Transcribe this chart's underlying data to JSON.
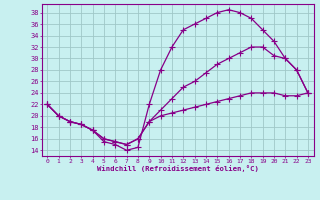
{
  "xlabel": "Windchill (Refroidissement éolien,°C)",
  "bg_color": "#c8f0f0",
  "grid_color": "#a0c8c8",
  "line_color": "#880088",
  "xlim": [
    -0.5,
    23.5
  ],
  "ylim": [
    13,
    39.5
  ],
  "xticks": [
    0,
    1,
    2,
    3,
    4,
    5,
    6,
    7,
    8,
    9,
    10,
    11,
    12,
    13,
    14,
    15,
    16,
    17,
    18,
    19,
    20,
    21,
    22,
    23
  ],
  "yticks": [
    14,
    16,
    18,
    20,
    22,
    24,
    26,
    28,
    30,
    32,
    34,
    36,
    38
  ],
  "curve1_x": [
    0,
    1,
    2,
    3,
    4,
    5,
    6,
    7,
    8,
    9,
    10,
    11,
    12,
    13,
    14,
    15,
    16,
    17,
    18,
    19,
    20,
    21,
    22,
    23
  ],
  "curve1_y": [
    22,
    20,
    19,
    18.5,
    17.5,
    15.5,
    15,
    14,
    14.5,
    22,
    28,
    32,
    35,
    36,
    37,
    38,
    38.5,
    38,
    37,
    35,
    33,
    30,
    28,
    24
  ],
  "curve2_x": [
    0,
    1,
    2,
    3,
    4,
    5,
    6,
    7,
    8,
    9,
    10,
    11,
    12,
    13,
    14,
    15,
    16,
    17,
    18,
    19,
    20,
    21,
    22,
    23
  ],
  "curve2_y": [
    22,
    20,
    19,
    18.5,
    17.5,
    16,
    15.5,
    15,
    16,
    19,
    21,
    23,
    25,
    26,
    27.5,
    29,
    30,
    31,
    32,
    32,
    30.5,
    30,
    28,
    24
  ],
  "curve3_x": [
    0,
    1,
    2,
    3,
    4,
    5,
    6,
    7,
    8,
    9,
    10,
    11,
    12,
    13,
    14,
    15,
    16,
    17,
    18,
    19,
    20,
    21,
    22,
    23
  ],
  "curve3_y": [
    22,
    20,
    19,
    18.5,
    17.5,
    16,
    15.5,
    15,
    16,
    19,
    20,
    20.5,
    21,
    21.5,
    22,
    22.5,
    23,
    23.5,
    24,
    24,
    24,
    23.5,
    23.5,
    24
  ]
}
